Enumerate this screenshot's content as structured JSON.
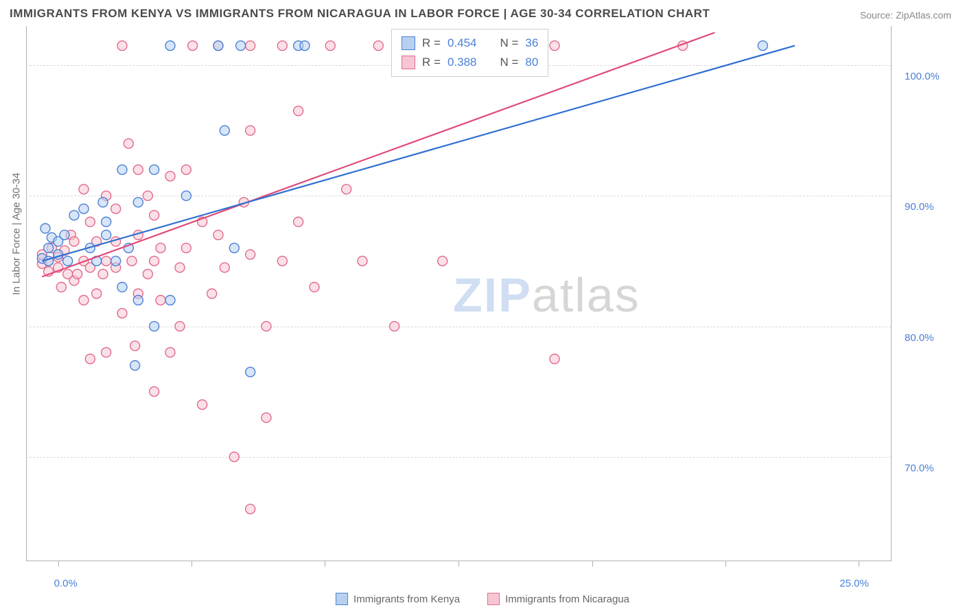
{
  "title": "IMMIGRANTS FROM KENYA VS IMMIGRANTS FROM NICARAGUA IN LABOR FORCE | AGE 30-34 CORRELATION CHART",
  "source_label": "Source: ZipAtlas.com",
  "y_axis_label": "In Labor Force | Age 30-34",
  "watermark_a": "ZIP",
  "watermark_b": "atlas",
  "chart": {
    "type": "scatter",
    "xlim": [
      -1,
      26
    ],
    "ylim": [
      62,
      103
    ],
    "x_ticks": [
      0,
      25
    ],
    "x_tick_labels": [
      "0.0%",
      "25.0%"
    ],
    "x_minor_ticks": [
      4.17,
      8.33,
      12.5,
      16.67,
      20.83
    ],
    "y_ticks": [
      70,
      80,
      90,
      100
    ],
    "y_tick_labels": [
      "70.0%",
      "80.0%",
      "90.0%",
      "100.0%"
    ],
    "background_color": "#ffffff",
    "grid_color": "#d8d8d8",
    "axis_color": "#b0b0b0",
    "marker_radius": 7,
    "marker_stroke_width": 1.4,
    "line_width": 2.2
  },
  "series": {
    "kenya": {
      "label": "Immigrants from Kenya",
      "fill": "#b8d0ef",
      "stroke": "#4a80d6",
      "fill_opacity": 0.55,
      "line_color": "#2f6fd0",
      "r_value": "0.454",
      "n_value": "36",
      "trend": {
        "x1": -0.5,
        "y1": 85.0,
        "x2": 23.0,
        "y2": 101.5
      },
      "points": [
        [
          -0.5,
          85.2
        ],
        [
          -0.3,
          86.0
        ],
        [
          -0.3,
          85.0
        ],
        [
          -0.2,
          86.8
        ],
        [
          -0.4,
          87.5
        ],
        [
          0.0,
          85.5
        ],
        [
          0.0,
          86.5
        ],
        [
          0.2,
          87.0
        ],
        [
          0.3,
          85.0
        ],
        [
          0.5,
          88.5
        ],
        [
          0.8,
          89.0
        ],
        [
          1.0,
          86.0
        ],
        [
          1.2,
          85.0
        ],
        [
          1.4,
          89.5
        ],
        [
          1.5,
          87.0
        ],
        [
          1.5,
          88.0
        ],
        [
          1.8,
          85.0
        ],
        [
          2.0,
          83.0
        ],
        [
          2.0,
          92.0
        ],
        [
          2.2,
          86.0
        ],
        [
          2.4,
          77.0
        ],
        [
          2.5,
          89.5
        ],
        [
          2.5,
          82.0
        ],
        [
          3.0,
          92.0
        ],
        [
          3.0,
          80.0
        ],
        [
          3.5,
          101.5
        ],
        [
          3.5,
          82.0
        ],
        [
          4.0,
          90.0
        ],
        [
          5.0,
          101.5
        ],
        [
          5.2,
          95.0
        ],
        [
          5.5,
          86.0
        ],
        [
          5.7,
          101.5
        ],
        [
          6.0,
          76.5
        ],
        [
          7.5,
          101.5
        ],
        [
          7.7,
          101.5
        ],
        [
          22.0,
          101.5
        ]
      ]
    },
    "nicaragua": {
      "label": "Immigrants from Nicaragua",
      "fill": "#f6c6d3",
      "stroke": "#e26a8b",
      "fill_opacity": 0.55,
      "line_color": "#e04a77",
      "r_value": "0.388",
      "n_value": "80",
      "trend": {
        "x1": -0.5,
        "y1": 83.8,
        "x2": 20.5,
        "y2": 102.5
      },
      "points": [
        [
          -0.5,
          84.8
        ],
        [
          -0.5,
          85.5
        ],
        [
          -0.3,
          84.2
        ],
        [
          -0.3,
          85.0
        ],
        [
          -0.2,
          86.0
        ],
        [
          0.0,
          84.5
        ],
        [
          0.0,
          85.3
        ],
        [
          0.1,
          83.0
        ],
        [
          0.2,
          85.8
        ],
        [
          0.3,
          84.0
        ],
        [
          0.4,
          87.0
        ],
        [
          0.5,
          83.5
        ],
        [
          0.5,
          86.5
        ],
        [
          0.6,
          84.0
        ],
        [
          0.8,
          82.0
        ],
        [
          0.8,
          85.0
        ],
        [
          0.8,
          90.5
        ],
        [
          1.0,
          77.5
        ],
        [
          1.0,
          84.5
        ],
        [
          1.0,
          88.0
        ],
        [
          1.2,
          82.5
        ],
        [
          1.2,
          86.5
        ],
        [
          1.4,
          84.0
        ],
        [
          1.5,
          78.0
        ],
        [
          1.5,
          85.0
        ],
        [
          1.5,
          90.0
        ],
        [
          1.8,
          84.5
        ],
        [
          1.8,
          86.5
        ],
        [
          1.8,
          89.0
        ],
        [
          2.0,
          81.0
        ],
        [
          2.0,
          101.5
        ],
        [
          2.2,
          94.0
        ],
        [
          2.3,
          85.0
        ],
        [
          2.4,
          78.5
        ],
        [
          2.5,
          82.5
        ],
        [
          2.5,
          87.0
        ],
        [
          2.5,
          92.0
        ],
        [
          2.8,
          84.0
        ],
        [
          2.8,
          90.0
        ],
        [
          3.0,
          75.0
        ],
        [
          3.0,
          85.0
        ],
        [
          3.0,
          88.5
        ],
        [
          3.2,
          82.0
        ],
        [
          3.2,
          86.0
        ],
        [
          3.5,
          91.5
        ],
        [
          3.5,
          78.0
        ],
        [
          3.8,
          80.0
        ],
        [
          3.8,
          84.5
        ],
        [
          4.0,
          92.0
        ],
        [
          4.0,
          86.0
        ],
        [
          4.2,
          101.5
        ],
        [
          4.5,
          88.0
        ],
        [
          4.5,
          74.0
        ],
        [
          4.8,
          82.5
        ],
        [
          5.0,
          87.0
        ],
        [
          5.0,
          101.5
        ],
        [
          5.2,
          84.5
        ],
        [
          5.5,
          70.0
        ],
        [
          5.8,
          89.5
        ],
        [
          6.0,
          85.5
        ],
        [
          6.0,
          101.5
        ],
        [
          6.0,
          66.0
        ],
        [
          6.0,
          95.0
        ],
        [
          6.5,
          73.0
        ],
        [
          6.5,
          80.0
        ],
        [
          7.0,
          101.5
        ],
        [
          7.0,
          85.0
        ],
        [
          7.5,
          96.5
        ],
        [
          7.5,
          88.0
        ],
        [
          8.0,
          83.0
        ],
        [
          8.5,
          101.5
        ],
        [
          9.0,
          90.5
        ],
        [
          9.5,
          85.0
        ],
        [
          10.0,
          101.5
        ],
        [
          10.5,
          80.0
        ],
        [
          11.5,
          101.5
        ],
        [
          12.0,
          85.0
        ],
        [
          15.5,
          101.5
        ],
        [
          15.5,
          77.5
        ],
        [
          19.5,
          101.5
        ]
      ]
    }
  },
  "legend": {
    "bottom_items": [
      "kenya",
      "nicaragua"
    ]
  },
  "stats_box": {
    "r_label": "R =",
    "n_label": "N ="
  }
}
